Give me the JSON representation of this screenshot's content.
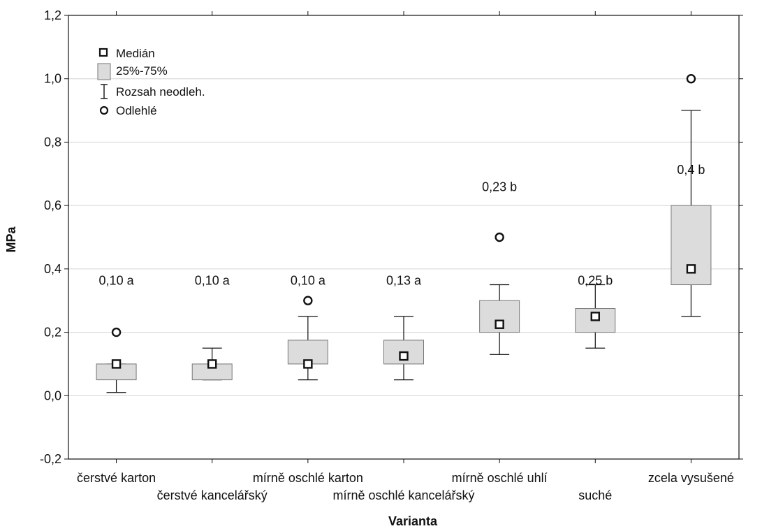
{
  "chart_data": {
    "type": "box",
    "xlabel": "Varianta",
    "ylabel": "MPa",
    "ylim": [
      -0.2,
      1.2
    ],
    "yticks": [
      "-0,2",
      "0,0",
      "0,2",
      "0,4",
      "0,6",
      "0,8",
      "1,0",
      "1,2"
    ],
    "grid": true,
    "legend_position": "top-left",
    "legend": {
      "median": "Medián",
      "box": "25%-75%",
      "whisker": "Rozsah neodleh.",
      "outlier": "Odlehlé"
    },
    "categories": [
      "čerstvé karton",
      "čerstvé kancelářský",
      "mírně oschlé karton",
      "mírně oschlé kancelářský",
      "mírně oschlé uhlí",
      "suché",
      "zcela vysušené"
    ],
    "boxes": [
      {
        "median": 0.1,
        "q1": 0.05,
        "q3": 0.1,
        "whisker_low": 0.01,
        "whisker_high": 0.1,
        "outliers": [
          0.2
        ],
        "annotation": "0,10 a"
      },
      {
        "median": 0.1,
        "q1": 0.05,
        "q3": 0.1,
        "whisker_low": 0.05,
        "whisker_high": 0.15,
        "outliers": [],
        "annotation": "0,10 a"
      },
      {
        "median": 0.1,
        "q1": 0.1,
        "q3": 0.175,
        "whisker_low": 0.05,
        "whisker_high": 0.25,
        "outliers": [
          0.3
        ],
        "annotation": "0,10 a"
      },
      {
        "median": 0.125,
        "q1": 0.1,
        "q3": 0.175,
        "whisker_low": 0.05,
        "whisker_high": 0.25,
        "outliers": [],
        "annotation": "0,13 a"
      },
      {
        "median": 0.225,
        "q1": 0.2,
        "q3": 0.3,
        "whisker_low": 0.13,
        "whisker_high": 0.35,
        "outliers": [
          0.5
        ],
        "annotation": "0,23 b"
      },
      {
        "median": 0.25,
        "q1": 0.2,
        "q3": 0.275,
        "whisker_low": 0.15,
        "whisker_high": 0.35,
        "outliers": [],
        "annotation": "0,25 b"
      },
      {
        "median": 0.4,
        "q1": 0.35,
        "q3": 0.6,
        "whisker_low": 0.25,
        "whisker_high": 0.9,
        "outliers": [
          1.0
        ],
        "annotation": "0,4 b"
      }
    ],
    "colors": {
      "box_fill": "#dcdcdc",
      "box_stroke": "#777777",
      "grid": "#d4d4d4",
      "ink": "#111111"
    }
  }
}
